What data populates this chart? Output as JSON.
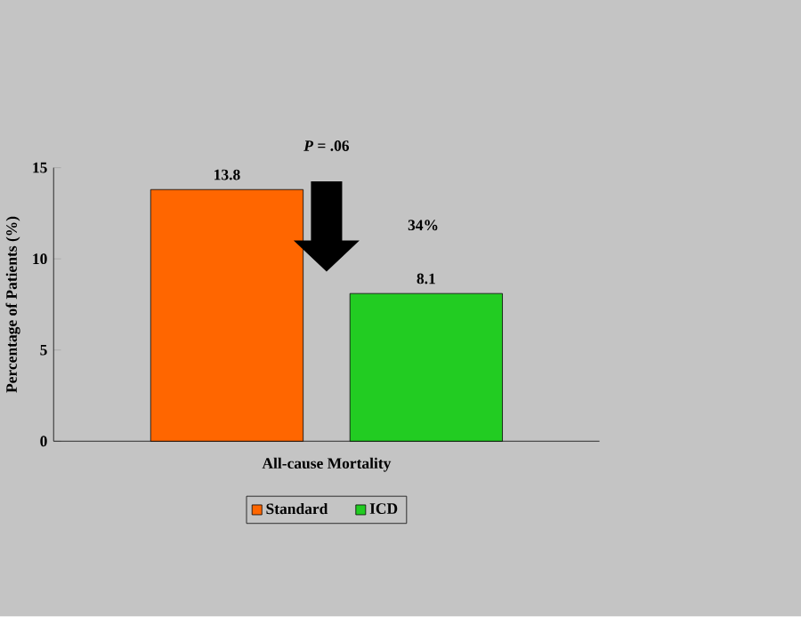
{
  "chart_data": {
    "type": "bar",
    "ylabel": "Percentage of Patients (%)",
    "categories": [
      "All-cause Mortality"
    ],
    "series": [
      {
        "name": "Standard",
        "color": "#ff6600",
        "values": [
          13.8
        ]
      },
      {
        "name": "ICD",
        "color": "#22cc22",
        "values": [
          8.1
        ]
      }
    ],
    "ylim": [
      0,
      15
    ],
    "yticks": [
      0,
      5,
      10,
      15
    ],
    "data_labels": true,
    "legend": "bottom",
    "annotations": [
      "*P* = .06",
      "34%"
    ]
  }
}
